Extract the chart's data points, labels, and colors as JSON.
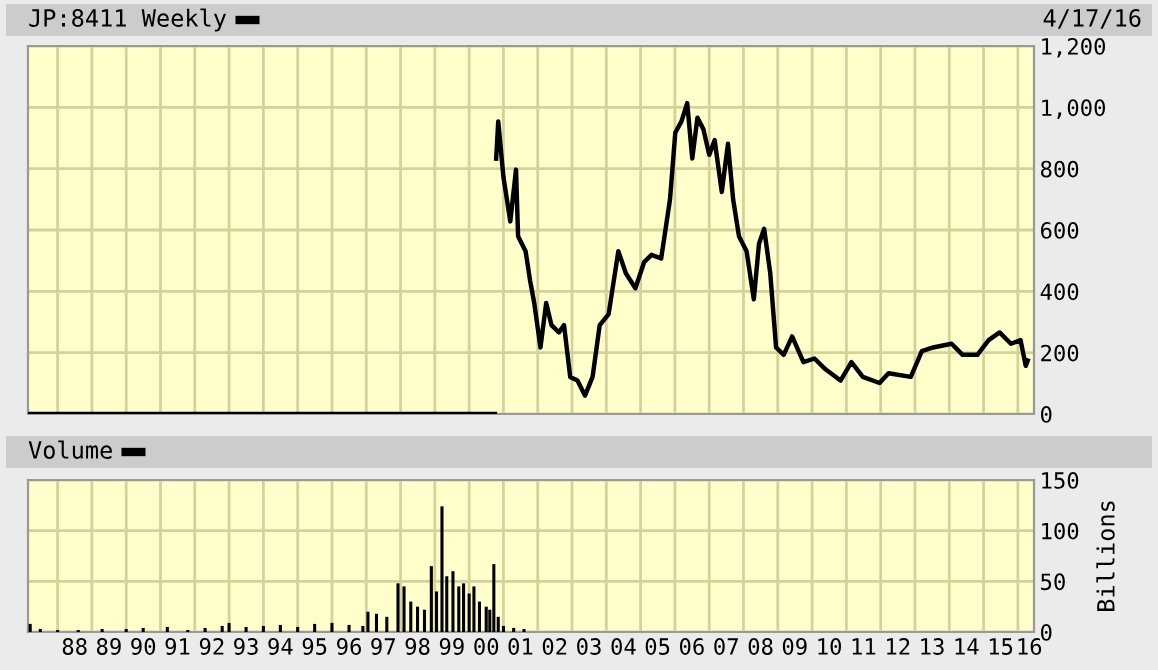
{
  "chart_data": [
    {
      "type": "line",
      "xlim": [
        "1987-02-20",
        "2016-06-21"
      ],
      "ylim": [
        0,
        1200
      ],
      "xticks": [
        {
          "value": "1988-01-01",
          "label": null
        },
        {
          "value": "1989-01-01",
          "label": null
        },
        {
          "value": "1990-01-01",
          "label": null
        },
        {
          "value": "1991-01-01",
          "label": null
        },
        {
          "value": "1992-01-01",
          "label": null
        },
        {
          "value": "1993-01-01",
          "label": null
        },
        {
          "value": "1994-01-01",
          "label": null
        },
        {
          "value": "1995-01-01",
          "label": null
        },
        {
          "value": "1996-01-01",
          "label": null
        },
        {
          "value": "1997-01-01",
          "label": null
        },
        {
          "value": "1998-01-01",
          "label": null
        },
        {
          "value": "1999-01-01",
          "label": null
        },
        {
          "value": "2000-01-01",
          "label": null
        },
        {
          "value": "2001-01-01",
          "label": null
        },
        {
          "value": "2002-01-01",
          "label": null
        },
        {
          "value": "2003-01-01",
          "label": null
        },
        {
          "value": "2004-01-01",
          "label": null
        },
        {
          "value": "2005-01-01",
          "label": null
        },
        {
          "value": "2006-01-01",
          "label": null
        },
        {
          "value": "2007-01-01",
          "label": null
        },
        {
          "value": "2008-01-01",
          "label": null
        },
        {
          "value": "2009-01-01",
          "label": null
        },
        {
          "value": "2010-01-01",
          "label": null
        },
        {
          "value": "2011-01-01",
          "label": null
        },
        {
          "value": "2012-01-01",
          "label": null
        },
        {
          "value": "2013-01-01",
          "label": null
        },
        {
          "value": "2014-01-01",
          "label": null
        },
        {
          "value": "2015-01-01",
          "label": null
        },
        {
          "value": "2016-01-01",
          "label": null
        }
      ],
      "yticks": [
        0,
        200,
        400,
        600,
        800,
        {
          "value": 1000,
          "label": "1,000"
        },
        {
          "value": 1200,
          "label": "1,200"
        }
      ],
      "tick_labels": "y",
      "grid": true,
      "legend": "top left",
      "marker": "none",
      "line_style": "solid",
      "annotations": [
        "4/17/16"
      ],
      "series": [
        {
          "name": "JP:8411 Weekly",
          "color": "#000000",
          "x": [
            "1987-02-20",
            "2000-10-01",
            "2000-10-08",
            "2000-10-15",
            "2000-11-06",
            "2001-01-01",
            "2001-03-15",
            "2001-05-15",
            "2001-06-06",
            "2001-08-25",
            "2001-10-12",
            "2001-11-25",
            "2002-01-30",
            "2002-04-01",
            "2002-05-27",
            "2002-08-15",
            "2002-10-08",
            "2002-12-13",
            "2003-02-28",
            "2003-05-19",
            "2003-08-08",
            "2003-10-23",
            "2004-01-26",
            "2004-05-08",
            "2004-07-27",
            "2004-11-06",
            "2005-02-07",
            "2005-04-27",
            "2005-08-08",
            "2005-11-10",
            "2006-01-05",
            "2006-03-12",
            "2006-05-12",
            "2006-07-05",
            "2006-08-29",
            "2006-10-31",
            "2007-01-01",
            "2007-02-28",
            "2007-05-15",
            "2007-07-20",
            "2007-09-13",
            "2007-11-14",
            "2008-02-03",
            "2008-04-20",
            "2008-06-14",
            "2008-08-08",
            "2008-10-12",
            "2008-12-13",
            "2009-03-05",
            "2009-06-03",
            "2009-10-01",
            "2010-01-26",
            "2010-05-27",
            "2010-10-31",
            "2011-02-24",
            "2011-06-25",
            "2011-12-20",
            "2012-03-25",
            "2012-11-17",
            "2013-03-15",
            "2013-07-13",
            "2014-01-26",
            "2014-05-23",
            "2014-10-27",
            "2015-02-24",
            "2015-06-21",
            "2015-10-19",
            "2016-01-30",
            "2016-03-25",
            "2016-04-15"
          ],
          "values": [
            0,
            0,
            null,
            833,
            954,
            773,
            628,
            797,
            580,
            531,
            435,
            362,
            217,
            362,
            290,
            266,
            290,
            121,
            109,
            60,
            121,
            290,
            326,
            531,
            459,
            410,
            495,
            519,
            507,
            700,
            917,
            954,
            1014,
            833,
            966,
            929,
            845,
            893,
            724,
            881,
            700,
            580,
            531,
            374,
            555,
            604,
            459,
            217,
            193,
            253,
            169,
            181,
            145,
            109,
            169,
            121,
            101,
            133,
            121,
            205,
            217,
            229,
            193,
            193,
            241,
            266,
            229,
            241,
            157,
            174
          ]
        }
      ]
    },
    {
      "type": "bar",
      "xlim": [
        "1987-02-20",
        "2016-06-21"
      ],
      "ylim": [
        0,
        150
      ],
      "xticks": [
        {
          "value": "1988-01-01",
          "label": null
        },
        {
          "value": "1988-07-01",
          "label": "88"
        },
        {
          "value": "1989-01-01",
          "label": null
        },
        {
          "value": "1989-07-01",
          "label": "89"
        },
        {
          "value": "1990-01-01",
          "label": null
        },
        {
          "value": "1990-07-01",
          "label": "90"
        },
        {
          "value": "1991-01-01",
          "label": null
        },
        {
          "value": "1991-07-01",
          "label": "91"
        },
        {
          "value": "1992-01-01",
          "label": null
        },
        {
          "value": "1992-07-01",
          "label": "92"
        },
        {
          "value": "1993-01-01",
          "label": null
        },
        {
          "value": "1993-07-01",
          "label": "93"
        },
        {
          "value": "1994-01-01",
          "label": null
        },
        {
          "value": "1994-07-01",
          "label": "94"
        },
        {
          "value": "1995-01-01",
          "label": null
        },
        {
          "value": "1995-07-01",
          "label": "95"
        },
        {
          "value": "1996-01-01",
          "label": null
        },
        {
          "value": "1996-07-01",
          "label": "96"
        },
        {
          "value": "1997-01-01",
          "label": null
        },
        {
          "value": "1997-07-01",
          "label": "97"
        },
        {
          "value": "1998-01-01",
          "label": null
        },
        {
          "value": "1998-07-01",
          "label": "98"
        },
        {
          "value": "1999-01-01",
          "label": null
        },
        {
          "value": "1999-07-01",
          "label": "99"
        },
        {
          "value": "2000-01-01",
          "label": null
        },
        {
          "value": "2000-07-01",
          "label": "00"
        },
        {
          "value": "2001-01-01",
          "label": null
        },
        {
          "value": "2001-07-01",
          "label": "01"
        },
        {
          "value": "2002-01-01",
          "label": null
        },
        {
          "value": "2002-07-01",
          "label": "02"
        },
        {
          "value": "2003-01-01",
          "label": null
        },
        {
          "value": "2003-07-01",
          "label": "03"
        },
        {
          "value": "2004-01-01",
          "label": null
        },
        {
          "value": "2004-07-01",
          "label": "04"
        },
        {
          "value": "2005-01-01",
          "label": null
        },
        {
          "value": "2005-07-01",
          "label": "05"
        },
        {
          "value": "2006-01-01",
          "label": null
        },
        {
          "value": "2006-07-01",
          "label": "06"
        },
        {
          "value": "2007-01-01",
          "label": null
        },
        {
          "value": "2007-07-01",
          "label": "07"
        },
        {
          "value": "2008-01-01",
          "label": null
        },
        {
          "value": "2008-07-01",
          "label": "08"
        },
        {
          "value": "2009-01-01",
          "label": null
        },
        {
          "value": "2009-07-01",
          "label": "09"
        },
        {
          "value": "2010-01-01",
          "label": null
        },
        {
          "value": "2010-07-01",
          "label": "10"
        },
        {
          "value": "2011-01-01",
          "label": null
        },
        {
          "value": "2011-07-01",
          "label": "11"
        },
        {
          "value": "2012-01-01",
          "label": null
        },
        {
          "value": "2012-07-01",
          "label": "12"
        },
        {
          "value": "2013-01-01",
          "label": null
        },
        {
          "value": "2013-07-01",
          "label": "13"
        },
        {
          "value": "2014-01-01",
          "label": null
        },
        {
          "value": "2014-07-01",
          "label": "14"
        },
        {
          "value": "2015-01-01",
          "label": null
        },
        {
          "value": "2015-07-01",
          "label": "15"
        },
        {
          "value": "2016-01-01",
          "label": null
        },
        {
          "value": "2016-05-01",
          "label": "16"
        }
      ],
      "yticks": [
        0,
        50,
        100,
        150
      ],
      "ylabel": "Billions",
      "grid": true,
      "legend": "top left",
      "series": [
        {
          "name": "Volume",
          "color": "#000000",
          "x": [
            "1987-03-15",
            "1987-07-01",
            "1988-01-01",
            "1988-08-08",
            "1989-04-20",
            "1990-01-01",
            "1990-07-01",
            "1991-03-15",
            "1991-10-19",
            "1992-04-20",
            "1992-10-19",
            "1993-01-01",
            "1993-07-01",
            "1994-01-01",
            "1994-07-01",
            "1995-01-01",
            "1995-07-01",
            "1996-01-01",
            "1996-07-01",
            "1996-11-25",
            "1997-01-19",
            "1997-04-20",
            "1997-08-08",
            "1997-12-05",
            "1998-02-07",
            "1998-04-20",
            "1998-07-01",
            "1998-09-13",
            "1998-11-25",
            "1999-01-19",
            "1999-03-18",
            "1999-05-08",
            "1999-07-13",
            "1999-09-13",
            "1999-11-03",
            "2000-01-01",
            "2000-02-21",
            "2000-04-20",
            "2000-07-01",
            "2000-08-08",
            "2000-09-20",
            "2000-11-06",
            "2001-01-01",
            "2001-04-20",
            "2001-08-08"
          ],
          "values": [
            8,
            3,
            2,
            2,
            3,
            3,
            4,
            5,
            2,
            4,
            6,
            9,
            5,
            6,
            7,
            5,
            8,
            9,
            7,
            6,
            20,
            18,
            15,
            48,
            45,
            30,
            25,
            22,
            65,
            40,
            124,
            55,
            60,
            45,
            48,
            38,
            45,
            30,
            25,
            22,
            67,
            15,
            6,
            4,
            3
          ]
        }
      ]
    }
  ]
}
